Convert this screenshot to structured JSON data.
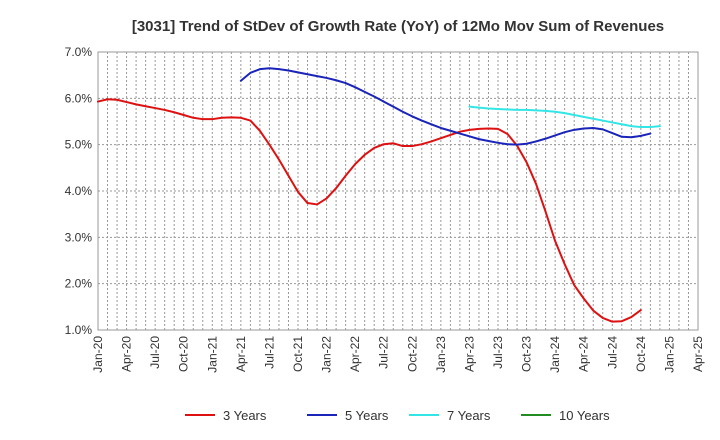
{
  "chart_data": {
    "type": "line",
    "title": "[3031]  Trend of StDev of Growth Rate (YoY) of 12Mo Mov Sum of Revenues",
    "xlabel": "",
    "ylabel": "",
    "ylim": [
      1.0,
      7.0
    ],
    "y_ticks": [
      "1.0%",
      "2.0%",
      "3.0%",
      "4.0%",
      "5.0%",
      "6.0%",
      "7.0%"
    ],
    "y_tick_values": [
      1,
      2,
      3,
      4,
      5,
      6,
      7
    ],
    "x_ticks": [
      "Jan-20",
      "Apr-20",
      "Jul-20",
      "Oct-20",
      "Jan-21",
      "Apr-21",
      "Jul-21",
      "Oct-21",
      "Jan-22",
      "Apr-22",
      "Jul-22",
      "Oct-22",
      "Jan-23",
      "Apr-23",
      "Jul-23",
      "Oct-23",
      "Jan-24",
      "Apr-24",
      "Jul-24",
      "Oct-24",
      "Jan-25",
      "Apr-25"
    ],
    "x_months_total": 63,
    "grid": true,
    "legend_position": "bottom",
    "series": [
      {
        "name": "3 Years",
        "color": "#dd1111",
        "start_month": 0,
        "values": [
          5.93,
          5.98,
          5.97,
          5.92,
          5.87,
          5.83,
          5.79,
          5.75,
          5.7,
          5.64,
          5.58,
          5.55,
          5.55,
          5.58,
          5.59,
          5.58,
          5.52,
          5.3,
          5.0,
          4.68,
          4.33,
          3.98,
          3.74,
          3.71,
          3.84,
          4.06,
          4.33,
          4.58,
          4.78,
          4.93,
          5.01,
          5.03,
          4.97,
          4.97,
          5.01,
          5.07,
          5.14,
          5.21,
          5.28,
          5.32,
          5.34,
          5.35,
          5.34,
          5.23,
          4.98,
          4.62,
          4.15,
          3.55,
          2.92,
          2.42,
          1.97,
          1.68,
          1.42,
          1.26,
          1.18,
          1.19,
          1.28,
          1.43
        ]
      },
      {
        "name": "5 Years",
        "color": "#1a24b8",
        "start_month": 15,
        "values": [
          6.38,
          6.55,
          6.63,
          6.65,
          6.63,
          6.6,
          6.56,
          6.52,
          6.48,
          6.44,
          6.39,
          6.33,
          6.24,
          6.14,
          6.04,
          5.93,
          5.82,
          5.71,
          5.61,
          5.52,
          5.44,
          5.36,
          5.3,
          5.24,
          5.18,
          5.12,
          5.08,
          5.04,
          5.01,
          5.0,
          5.02,
          5.07,
          5.13,
          5.2,
          5.27,
          5.32,
          5.35,
          5.36,
          5.33,
          5.25,
          5.17,
          5.16,
          5.19,
          5.24
        ]
      },
      {
        "name": "7 Years",
        "color": "#33e6e6",
        "start_month": 39,
        "values": [
          5.82,
          5.8,
          5.78,
          5.77,
          5.76,
          5.75,
          5.75,
          5.74,
          5.73,
          5.71,
          5.68,
          5.64,
          5.6,
          5.56,
          5.52,
          5.48,
          5.44,
          5.4,
          5.38,
          5.38,
          5.4
        ]
      },
      {
        "name": "10 Years",
        "color": "#228b22",
        "start_month": 0,
        "values": []
      }
    ]
  }
}
